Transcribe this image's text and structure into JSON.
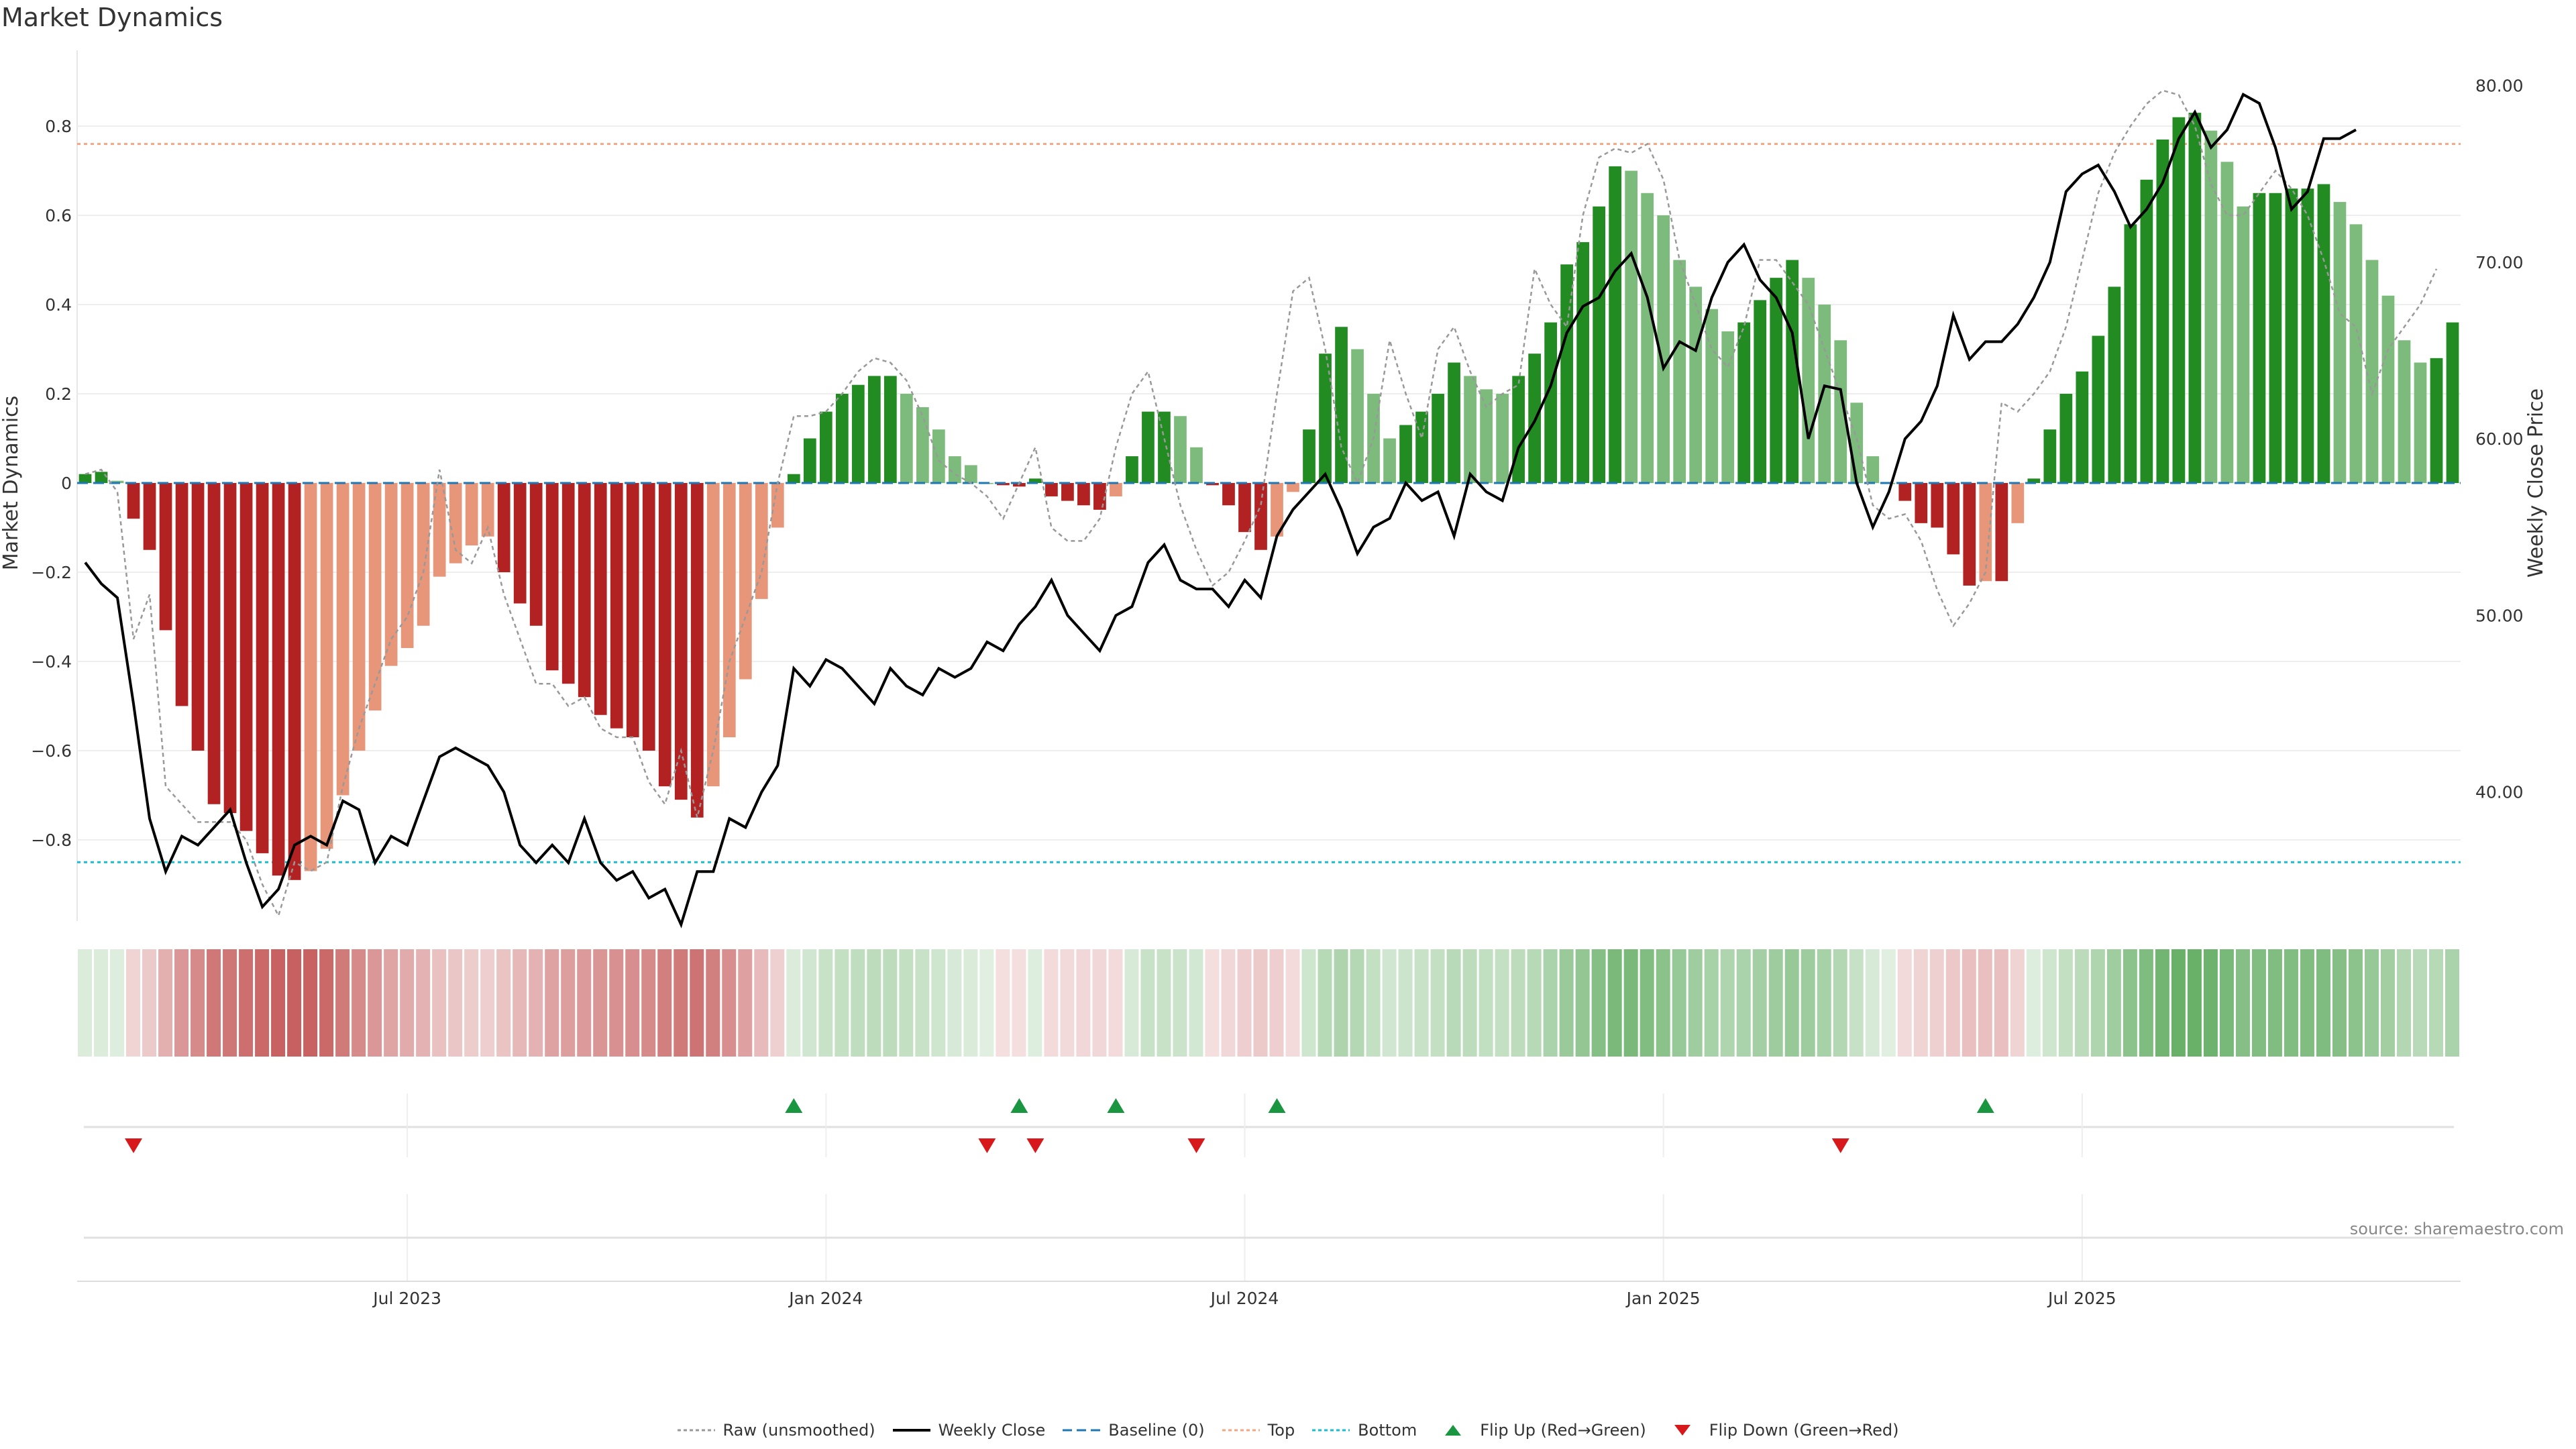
{
  "chart_data": {
    "type": "bar",
    "title": "Market Dynamics",
    "ylabel_left": "Market Dynamics",
    "ylabel_right": "Weekly Close Price",
    "ylim_left": [
      -0.97,
      0.97
    ],
    "ylim_right": [
      33,
      82
    ],
    "yticks_left": [
      "0.8",
      "0.6",
      "0.4",
      "0.2",
      "0",
      "−0.2",
      "−0.4",
      "−0.6",
      "−0.8"
    ],
    "yticks_left_values": [
      0.8,
      0.6,
      0.4,
      0.2,
      0,
      -0.2,
      -0.4,
      -0.6,
      -0.8
    ],
    "yticks_right": [
      "80.00",
      "70.00",
      "60.00",
      "50.00",
      "40.00"
    ],
    "yticks_right_values": [
      80,
      70,
      60,
      50,
      40
    ],
    "xticks": [
      "Jul 2023",
      "Jan 2024",
      "Jul 2024",
      "Jan 2025",
      "Jul 2025"
    ],
    "xticks_weeks": [
      20.5,
      46.5,
      72.5,
      98.5,
      124.5
    ],
    "top_threshold": 0.76,
    "bottom_threshold": -0.85,
    "series": [
      {
        "name": "Market Dynamics",
        "values": [
          0.02,
          0.025,
          0.005,
          -0.08,
          -0.15,
          -0.33,
          -0.5,
          -0.6,
          -0.72,
          -0.74,
          -0.78,
          -0.83,
          -0.88,
          -0.89,
          -0.87,
          -0.82,
          -0.7,
          -0.6,
          -0.51,
          -0.41,
          -0.37,
          -0.32,
          -0.21,
          -0.18,
          -0.14,
          -0.12,
          -0.2,
          -0.27,
          -0.32,
          -0.42,
          -0.45,
          -0.48,
          -0.52,
          -0.55,
          -0.57,
          -0.6,
          -0.68,
          -0.71,
          -0.75,
          -0.68,
          -0.57,
          -0.44,
          -0.26,
          -0.1,
          0.02,
          0.1,
          0.16,
          0.2,
          0.22,
          0.24,
          0.24,
          0.2,
          0.17,
          0.12,
          0.06,
          0.04,
          0.0,
          -0.005,
          -0.008,
          0.01,
          -0.03,
          -0.04,
          -0.05,
          -0.06,
          -0.03,
          0.06,
          0.16,
          0.16,
          0.15,
          0.08,
          -0.005,
          -0.05,
          -0.11,
          -0.15,
          -0.12,
          -0.02,
          0.12,
          0.29,
          0.35,
          0.3,
          0.2,
          0.1,
          0.13,
          0.16,
          0.2,
          0.27,
          0.24,
          0.21,
          0.2,
          0.24,
          0.29,
          0.36,
          0.49,
          0.54,
          0.62,
          0.71,
          0.7,
          0.65,
          0.6,
          0.5,
          0.44,
          0.39,
          0.34,
          0.36,
          0.41,
          0.46,
          0.5,
          0.46,
          0.4,
          0.32,
          0.18,
          0.06,
          0.0,
          -0.04,
          -0.09,
          -0.1,
          -0.16,
          -0.23,
          -0.22,
          -0.22,
          -0.09,
          0.01,
          0.12,
          0.2,
          0.25,
          0.33,
          0.44,
          0.58,
          0.68,
          0.77,
          0.82,
          0.83,
          0.79,
          0.72,
          0.62,
          0.65,
          0.65,
          0.66,
          0.66,
          0.67,
          0.63,
          0.58,
          0.5,
          0.42,
          0.32,
          0.27,
          0.28,
          0.36
        ]
      },
      {
        "name": "Raw (unsmoothed)",
        "values": [
          0.02,
          0.03,
          -0.02,
          -0.35,
          -0.25,
          -0.68,
          -0.72,
          -0.76,
          -0.76,
          -0.76,
          -0.8,
          -0.9,
          -0.97,
          -0.85,
          -0.87,
          -0.85,
          -0.68,
          -0.55,
          -0.45,
          -0.35,
          -0.3,
          -0.2,
          0.03,
          -0.15,
          -0.18,
          -0.1,
          -0.25,
          -0.35,
          -0.45,
          -0.45,
          -0.5,
          -0.48,
          -0.55,
          -0.57,
          -0.57,
          -0.67,
          -0.72,
          -0.6,
          -0.75,
          -0.6,
          -0.4,
          -0.3,
          -0.2,
          0.0,
          0.15,
          0.15,
          0.16,
          0.2,
          0.25,
          0.28,
          0.27,
          0.23,
          0.15,
          0.05,
          0.02,
          0.0,
          -0.03,
          -0.08,
          0.0,
          0.08,
          -0.1,
          -0.13,
          -0.13,
          -0.08,
          0.08,
          0.2,
          0.25,
          0.1,
          -0.05,
          -0.15,
          -0.23,
          -0.2,
          -0.13,
          -0.05,
          0.2,
          0.43,
          0.46,
          0.3,
          0.08,
          0.0,
          0.1,
          0.32,
          0.2,
          0.1,
          0.3,
          0.35,
          0.25,
          0.17,
          0.2,
          0.22,
          0.48,
          0.4,
          0.35,
          0.6,
          0.73,
          0.75,
          0.74,
          0.76,
          0.68,
          0.5,
          0.4,
          0.3,
          0.26,
          0.35,
          0.5,
          0.5,
          0.45,
          0.4,
          0.3,
          0.2,
          0.1,
          -0.05,
          -0.08,
          -0.07,
          -0.13,
          -0.24,
          -0.32,
          -0.27,
          -0.2,
          0.18,
          0.16,
          0.2,
          0.25,
          0.35,
          0.5,
          0.65,
          0.74,
          0.8,
          0.85,
          0.88,
          0.87,
          0.8,
          0.67,
          0.6,
          0.6,
          0.65,
          0.7,
          0.66,
          0.6,
          0.5,
          0.38,
          0.35,
          0.2,
          0.3,
          0.35,
          0.4,
          0.48
        ]
      },
      {
        "name": "Weekly Close",
        "values": [
          53.0,
          51.8,
          51.0,
          45.0,
          38.5,
          35.5,
          37.5,
          37.0,
          38.0,
          39.0,
          36.0,
          33.5,
          34.5,
          37.0,
          37.5,
          37.0,
          39.5,
          39.0,
          36.0,
          37.5,
          37.0,
          39.5,
          42.0,
          42.5,
          42.0,
          41.5,
          40.0,
          37.0,
          36.0,
          37.0,
          36.0,
          38.5,
          36.0,
          35.0,
          35.5,
          34.0,
          34.5,
          32.5,
          35.5,
          35.5,
          38.5,
          38.0,
          40.0,
          41.5,
          47.0,
          46.0,
          47.5,
          47.0,
          46.0,
          45.0,
          47.0,
          46.0,
          45.5,
          47.0,
          46.5,
          47.0,
          48.5,
          48.0,
          49.5,
          50.5,
          52.0,
          50.0,
          49.0,
          48.0,
          50.0,
          50.5,
          53.0,
          54.0,
          52.0,
          51.5,
          51.5,
          50.5,
          52.0,
          51.0,
          54.5,
          56.0,
          57.0,
          58.0,
          56.0,
          53.5,
          55.0,
          55.5,
          57.5,
          56.5,
          57.0,
          54.5,
          58.0,
          57.0,
          56.5,
          59.5,
          61.0,
          63.0,
          66.0,
          67.5,
          68.0,
          69.5,
          70.5,
          68.0,
          64.0,
          65.5,
          65.0,
          68.0,
          70.0,
          71.0,
          69.0,
          68.0,
          66.0,
          60.0,
          63.0,
          62.8,
          57.5,
          55.0,
          57.0,
          60.0,
          61.0,
          63.0,
          67.0,
          64.5,
          65.5,
          65.5,
          66.5,
          68.0,
          70.0,
          74.0,
          75.0,
          75.5,
          74.0,
          72.0,
          73.0,
          74.5,
          77.0,
          78.5,
          76.5,
          77.5,
          79.5,
          79.0,
          76.5,
          73.0,
          74.0,
          77.0,
          77.0,
          77.5
        ]
      }
    ],
    "flip_up_weeks": [
      44,
      58,
      64,
      74,
      118
    ],
    "flip_down_weeks": [
      3,
      56,
      59,
      69,
      109
    ]
  },
  "colors": {
    "strong_green": "#228b22",
    "light_green": "#7dbb7d",
    "strong_red": "#b22222",
    "light_red": "#e8967a",
    "close_line": "#000000",
    "raw_line": "#999999",
    "baseline": "#1f77b4",
    "top_line": "#f4a582",
    "bottom_line": "#17becf",
    "flip_up": "#1a9641",
    "flip_down": "#d7191c"
  },
  "legend": [
    {
      "label": "Raw (unsmoothed)",
      "style": "dotted-gray"
    },
    {
      "label": "Weekly Close",
      "style": "solid-black"
    },
    {
      "label": "Baseline (0)",
      "style": "dashed-blue"
    },
    {
      "label": "Top",
      "style": "dotted-orange"
    },
    {
      "label": "Bottom",
      "style": "dotted-cyan"
    },
    {
      "label": "Flip Up (Red→Green)",
      "style": "triangle-up-green"
    },
    {
      "label": "Flip Down (Green→Red)",
      "style": "triangle-down-red"
    }
  ],
  "source": "source: sharemaestro.com"
}
